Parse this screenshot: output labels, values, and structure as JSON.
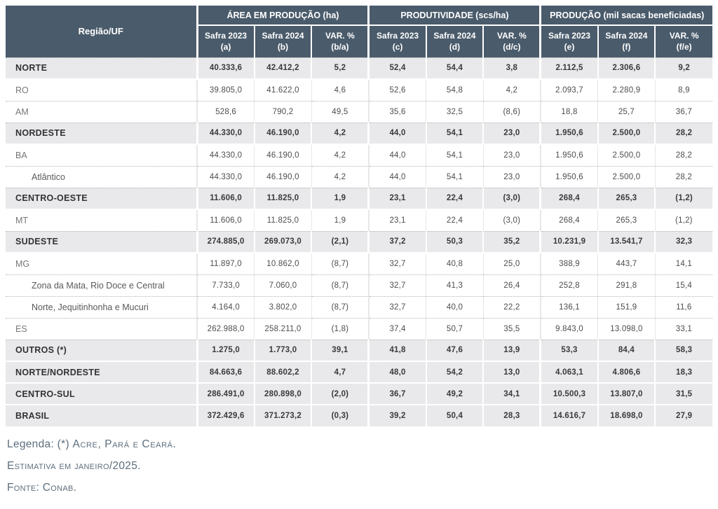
{
  "colors": {
    "header_bg": "#4a5b6b",
    "region_row_bg": "#e9e9eb",
    "body_text": "#4d4d4f",
    "footer_text": "#5d6e7d"
  },
  "table_header": {
    "region_col": "Região/UF",
    "groups": [
      {
        "title": "ÁREA EM PRODUÇÃO (ha)",
        "subs": [
          {
            "l1": "Safra 2023",
            "l2": "(a)"
          },
          {
            "l1": "Safra 2024",
            "l2": "(b)"
          },
          {
            "l1": "VAR. %",
            "l2": "(b/a)"
          }
        ]
      },
      {
        "title": "PRODUTIVIDADE (scs/ha)",
        "subs": [
          {
            "l1": "Safra 2023",
            "l2": "(c)"
          },
          {
            "l1": "Safra 2024",
            "l2": "(d)"
          },
          {
            "l1": "VAR. %",
            "l2": "(d/c)"
          }
        ]
      },
      {
        "title": "PRODUÇÃO (mil sacas beneficiadas)",
        "subs": [
          {
            "l1": "Safra 2023",
            "l2": "(e)"
          },
          {
            "l1": "Safra 2024",
            "l2": "(f)"
          },
          {
            "l1": "VAR. %",
            "l2": "(f/e)"
          }
        ]
      }
    ]
  },
  "chart_data": {
    "type": "table",
    "columns": [
      "Região/UF",
      "Área em Produção (ha) Safra 2023 (a)",
      "Área em Produção (ha) Safra 2024 (b)",
      "Área em Produção (ha) VAR. % (b/a)",
      "Produtividade (scs/ha) Safra 2023 (c)",
      "Produtividade (scs/ha) Safra 2024 (d)",
      "Produtividade (scs/ha) VAR. % (d/c)",
      "Produção (mil sacas beneficiadas) Safra 2023 (e)",
      "Produção (mil sacas beneficiadas) Safra 2024 (f)",
      "Produção (mil sacas beneficiadas) VAR. % (f/e)"
    ],
    "rows": [
      {
        "label": "NORTE",
        "type": "region",
        "values": [
          "40.333,6",
          "42.412,2",
          "5,2",
          "52,4",
          "54,4",
          "3,8",
          "2.112,5",
          "2.306,6",
          "9,2"
        ]
      },
      {
        "label": "RO",
        "type": "state",
        "values": [
          "39.805,0",
          "41.622,0",
          "4,6",
          "52,6",
          "54,8",
          "4,2",
          "2.093,7",
          "2.280,9",
          "8,9"
        ]
      },
      {
        "label": "AM",
        "type": "state",
        "values": [
          "528,6",
          "790,2",
          "49,5",
          "35,6",
          "32,5",
          "(8,6)",
          "18,8",
          "25,7",
          "36,7"
        ]
      },
      {
        "label": "NORDESTE",
        "type": "region",
        "values": [
          "44.330,0",
          "46.190,0",
          "4,2",
          "44,0",
          "54,1",
          "23,0",
          "1.950,6",
          "2.500,0",
          "28,2"
        ]
      },
      {
        "label": "BA",
        "type": "state",
        "values": [
          "44.330,0",
          "46.190,0",
          "4,2",
          "44,0",
          "54,1",
          "23,0",
          "1.950,6",
          "2.500,0",
          "28,2"
        ]
      },
      {
        "label": "Atlântico",
        "type": "subregion",
        "values": [
          "44.330,0",
          "46.190,0",
          "4,2",
          "44,0",
          "54,1",
          "23,0",
          "1.950,6",
          "2.500,0",
          "28,2"
        ]
      },
      {
        "label": "CENTRO-OESTE",
        "type": "region",
        "values": [
          "11.606,0",
          "11.825,0",
          "1,9",
          "23,1",
          "22,4",
          "(3,0)",
          "268,4",
          "265,3",
          "(1,2)"
        ]
      },
      {
        "label": "MT",
        "type": "state",
        "values": [
          "11.606,0",
          "11.825,0",
          "1,9",
          "23,1",
          "22,4",
          "(3,0)",
          "268,4",
          "265,3",
          "(1,2)"
        ]
      },
      {
        "label": "SUDESTE",
        "type": "region",
        "values": [
          "274.885,0",
          "269.073,0",
          "(2,1)",
          "37,2",
          "50,3",
          "35,2",
          "10.231,9",
          "13.541,7",
          "32,3"
        ]
      },
      {
        "label": "MG",
        "type": "state",
        "values": [
          "11.897,0",
          "10.862,0",
          "(8,7)",
          "32,7",
          "40,8",
          "25,0",
          "388,9",
          "443,7",
          "14,1"
        ]
      },
      {
        "label": "Zona da Mata, Rio Doce e Central",
        "type": "subregion",
        "values": [
          "7.733,0",
          "7.060,0",
          "(8,7)",
          "32,7",
          "41,3",
          "26,4",
          "252,8",
          "291,8",
          "15,4"
        ]
      },
      {
        "label": "Norte, Jequitinhonha e Mucuri",
        "type": "subregion",
        "values": [
          "4.164,0",
          "3.802,0",
          "(8,7)",
          "32,7",
          "40,0",
          "22,2",
          "136,1",
          "151,9",
          "11,6"
        ]
      },
      {
        "label": "ES",
        "type": "state",
        "values": [
          "262.988,0",
          "258.211,0",
          "(1,8)",
          "37,4",
          "50,7",
          "35,5",
          "9.843,0",
          "13.098,0",
          "33,1"
        ]
      },
      {
        "label": "OUTROS (*)",
        "type": "region",
        "values": [
          "1.275,0",
          "1.773,0",
          "39,1",
          "41,8",
          "47,6",
          "13,9",
          "53,3",
          "84,4",
          "58,3"
        ]
      },
      {
        "label": "NORTE/NORDESTE",
        "type": "region",
        "values": [
          "84.663,6",
          "88.602,2",
          "4,7",
          "48,0",
          "54,2",
          "13,0",
          "4.063,1",
          "4.806,6",
          "18,3"
        ]
      },
      {
        "label": "CENTRO-SUL",
        "type": "region",
        "values": [
          "286.491,0",
          "280.898,0",
          "(2,0)",
          "36,7",
          "49,2",
          "34,1",
          "10.500,3",
          "13.807,0",
          "31,5"
        ]
      },
      {
        "label": "BRASIL",
        "type": "region",
        "values": [
          "372.429,6",
          "371.273,2",
          "(0,3)",
          "39,2",
          "50,4",
          "28,3",
          "14.616,7",
          "18.698,0",
          "27,9"
        ]
      }
    ]
  },
  "footer": {
    "legend_prefix": "Legenda: (*) ",
    "legend_text": "Acre, Pará e Ceará.",
    "estimate": "Estimativa em janeiro/2025.",
    "source": "Fonte: Conab."
  }
}
